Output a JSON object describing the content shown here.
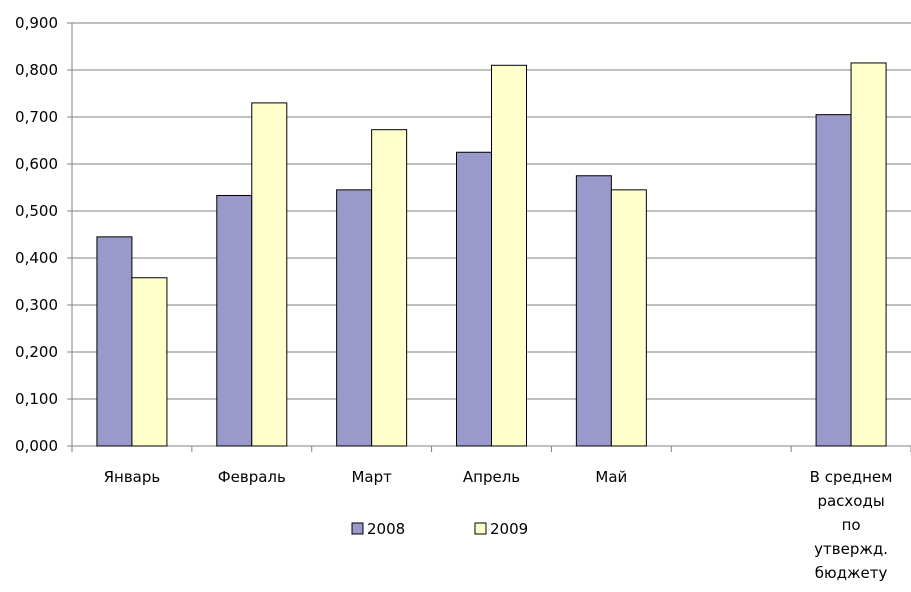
{
  "chart_data": {
    "type": "bar",
    "categories": [
      [
        "Январь"
      ],
      [
        "Февраль"
      ],
      [
        "Март"
      ],
      [
        "Апрель"
      ],
      [
        "Май"
      ],
      [
        ""
      ],
      [
        "В среднем",
        "расходы",
        "по",
        "утвержд.",
        "бюджету"
      ]
    ],
    "series": [
      {
        "name": "2008",
        "values": [
          0.445,
          0.533,
          0.545,
          0.625,
          0.575,
          null,
          0.705
        ],
        "color": "#9999CC"
      },
      {
        "name": "2009",
        "values": [
          0.358,
          0.73,
          0.673,
          0.81,
          0.545,
          null,
          0.815
        ],
        "color": "#FFFFCC"
      }
    ],
    "ylim": [
      0,
      0.9
    ],
    "yticks": [
      "0,000",
      "0,100",
      "0,200",
      "0,300",
      "0,400",
      "0,500",
      "0,600",
      "0,700",
      "0,800",
      "0,900"
    ],
    "grid": true,
    "legend_position": "bottom"
  }
}
